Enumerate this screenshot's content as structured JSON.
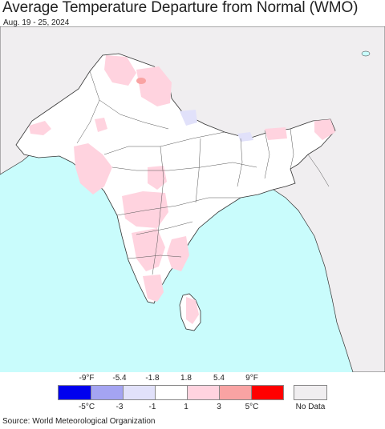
{
  "title": "Average Temperature Departure from Normal (WMO)",
  "date_range": "Aug. 19 - 25, 2024",
  "source": "Source: World Meteorological Organization",
  "colors": {
    "ocean": "#c9fcfc",
    "land_no_data": "#f0eef0",
    "land_data": "#ffffff",
    "warm_pos1": "#ffd3df",
    "warm_pos3": "#f9a3a3",
    "cool_neg1": "#e1e1fa",
    "border": "#333333"
  },
  "legend": {
    "fahrenheit_ticks": [
      "-9°F",
      "-5.4",
      "-1.8",
      "1.8",
      "5.4",
      "9°F"
    ],
    "celsius_ticks": [
      "-5°C",
      "-3",
      "-1",
      "1",
      "3",
      "5°C"
    ],
    "bins": [
      {
        "color": "#0000ee"
      },
      {
        "color": "#a4a4f2"
      },
      {
        "color": "#e1e1fa"
      },
      {
        "color": "#ffffff"
      },
      {
        "color": "#ffd3df"
      },
      {
        "color": "#f9a3a3"
      },
      {
        "color": "#ff0000"
      }
    ],
    "no_data_label": "No Data",
    "no_data_color": "#f0eef0"
  }
}
